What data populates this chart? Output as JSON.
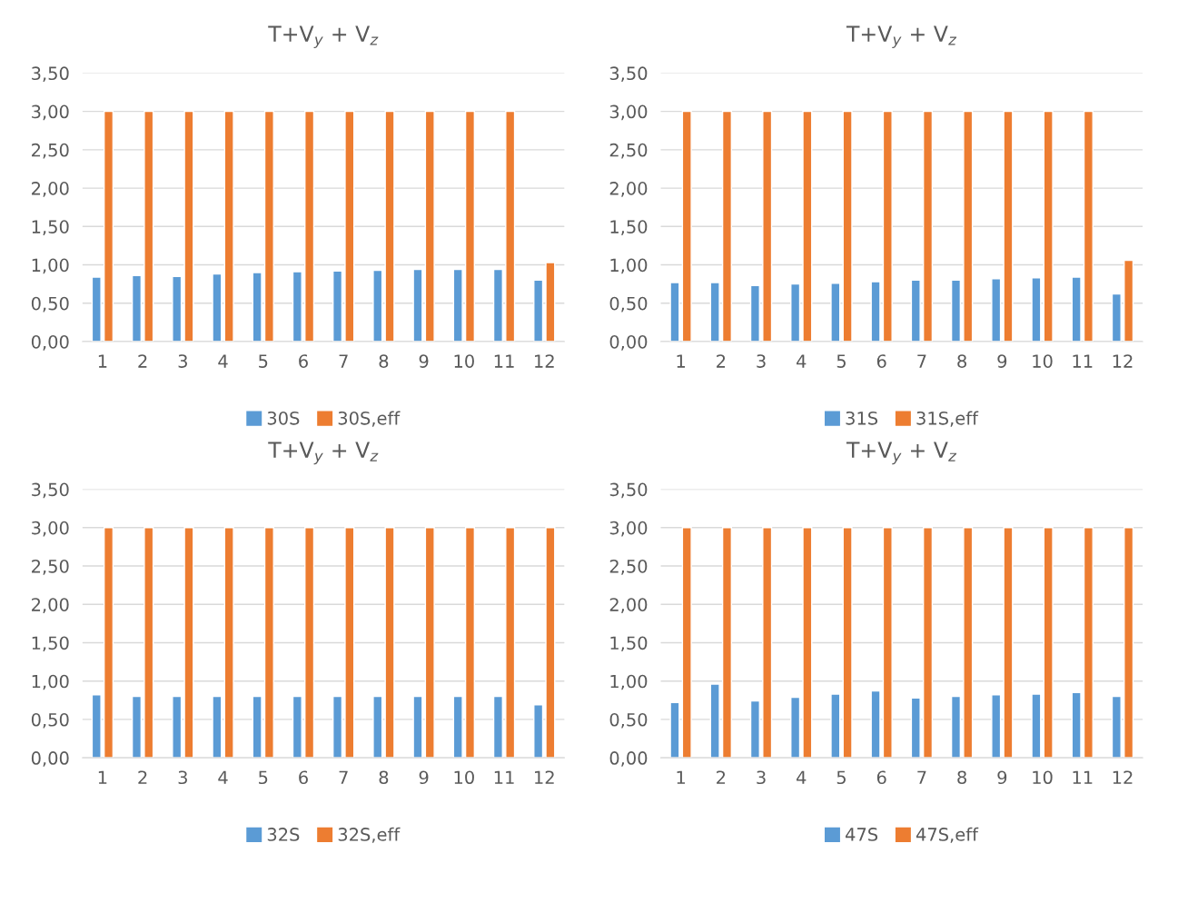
{
  "chart_data": [
    {
      "type": "bar",
      "title": "T+V$_{y}$ + V$_{z}$",
      "categories": [
        "1",
        "2",
        "3",
        "4",
        "5",
        "6",
        "7",
        "8",
        "9",
        "10",
        "11",
        "12"
      ],
      "series": [
        {
          "name": "30S",
          "color": "#5b9bd5",
          "values": [
            0.84,
            0.86,
            0.85,
            0.88,
            0.9,
            0.91,
            0.92,
            0.93,
            0.94,
            0.94,
            0.94,
            0.8
          ]
        },
        {
          "name": "30S,eff",
          "color": "#ed7d31",
          "values": [
            3,
            3,
            3,
            3,
            3,
            3,
            3,
            3,
            3,
            3,
            3,
            1.03
          ]
        }
      ],
      "ylim": [
        0,
        3.5
      ],
      "yticks": [
        {
          "value": 0,
          "label": "0,00"
        },
        {
          "value": 0.5,
          "label": "0,50"
        },
        {
          "value": 1,
          "label": "1,00"
        },
        {
          "value": 1.5,
          "label": "1,50"
        },
        {
          "value": 2,
          "label": "2,00"
        },
        {
          "value": 2.5,
          "label": "2,50"
        },
        {
          "value": 3,
          "label": "3,00"
        },
        {
          "value": 3.5,
          "label": "3,50"
        }
      ],
      "grid": "y",
      "legend": "bottom"
    },
    {
      "type": "bar",
      "title": "T+V$_{y}$ + V$_{z}$",
      "categories": [
        "1",
        "2",
        "3",
        "4",
        "5",
        "6",
        "7",
        "8",
        "9",
        "10",
        "11",
        "12"
      ],
      "series": [
        {
          "name": "31S",
          "color": "#5b9bd5",
          "values": [
            0.77,
            0.77,
            0.73,
            0.75,
            0.76,
            0.78,
            0.8,
            0.8,
            0.82,
            0.83,
            0.84,
            0.62
          ]
        },
        {
          "name": "31S,eff",
          "color": "#ed7d31",
          "values": [
            3,
            3,
            3,
            3,
            3,
            3,
            3,
            3,
            3,
            3,
            3,
            1.06
          ]
        }
      ],
      "ylim": [
        0,
        3.5
      ],
      "yticks": [
        {
          "value": 0,
          "label": "0,00"
        },
        {
          "value": 0.5,
          "label": "0,50"
        },
        {
          "value": 1,
          "label": "1,00"
        },
        {
          "value": 1.5,
          "label": "1,50"
        },
        {
          "value": 2,
          "label": "2,00"
        },
        {
          "value": 2.5,
          "label": "2,50"
        },
        {
          "value": 3,
          "label": "3,00"
        },
        {
          "value": 3.5,
          "label": "3,50"
        }
      ],
      "grid": "y",
      "legend": "bottom"
    },
    {
      "type": "bar",
      "title": "T+V$_{y}$ + V$_{z}$",
      "categories": [
        "1",
        "2",
        "3",
        "4",
        "5",
        "6",
        "7",
        "8",
        "9",
        "10",
        "11",
        "12"
      ],
      "series": [
        {
          "name": "32S",
          "color": "#5b9bd5",
          "values": [
            0.82,
            0.8,
            0.8,
            0.8,
            0.8,
            0.8,
            0.8,
            0.8,
            0.8,
            0.8,
            0.8,
            0.69
          ]
        },
        {
          "name": "32S,eff",
          "color": "#ed7d31",
          "values": [
            3,
            3,
            3,
            3,
            3,
            3,
            3,
            3,
            3,
            3,
            3,
            3
          ]
        }
      ],
      "ylim": [
        0,
        3.5
      ],
      "yticks": [
        {
          "value": 0,
          "label": "0,00"
        },
        {
          "value": 0.5,
          "label": "0,50"
        },
        {
          "value": 1,
          "label": "1,00"
        },
        {
          "value": 1.5,
          "label": "1,50"
        },
        {
          "value": 2,
          "label": "2,00"
        },
        {
          "value": 2.5,
          "label": "2,50"
        },
        {
          "value": 3,
          "label": "3,00"
        },
        {
          "value": 3.5,
          "label": "3,50"
        }
      ],
      "grid": "y",
      "legend": "bottom"
    },
    {
      "type": "bar",
      "title": "T+V$_{y}$ + V$_{z}$",
      "categories": [
        "1",
        "2",
        "3",
        "4",
        "5",
        "6",
        "7",
        "8",
        "9",
        "10",
        "11",
        "12"
      ],
      "series": [
        {
          "name": "47S",
          "color": "#5b9bd5",
          "values": [
            0.72,
            0.96,
            0.74,
            0.79,
            0.83,
            0.87,
            0.78,
            0.8,
            0.82,
            0.83,
            0.85,
            0.8
          ]
        },
        {
          "name": "47S,eff",
          "color": "#ed7d31",
          "values": [
            3,
            3,
            3,
            3,
            3,
            3,
            3,
            3,
            3,
            3,
            3,
            3
          ]
        }
      ],
      "ylim": [
        0,
        3.5
      ],
      "yticks": [
        {
          "value": 0,
          "label": "0,00"
        },
        {
          "value": 0.5,
          "label": "0,50"
        },
        {
          "value": 1,
          "label": "1,00"
        },
        {
          "value": 1.5,
          "label": "1,50"
        },
        {
          "value": 2,
          "label": "2,00"
        },
        {
          "value": 2.5,
          "label": "2,50"
        },
        {
          "value": 3,
          "label": "3,00"
        },
        {
          "value": 3.5,
          "label": "3,50"
        }
      ],
      "grid": "y",
      "legend": "bottom"
    }
  ]
}
